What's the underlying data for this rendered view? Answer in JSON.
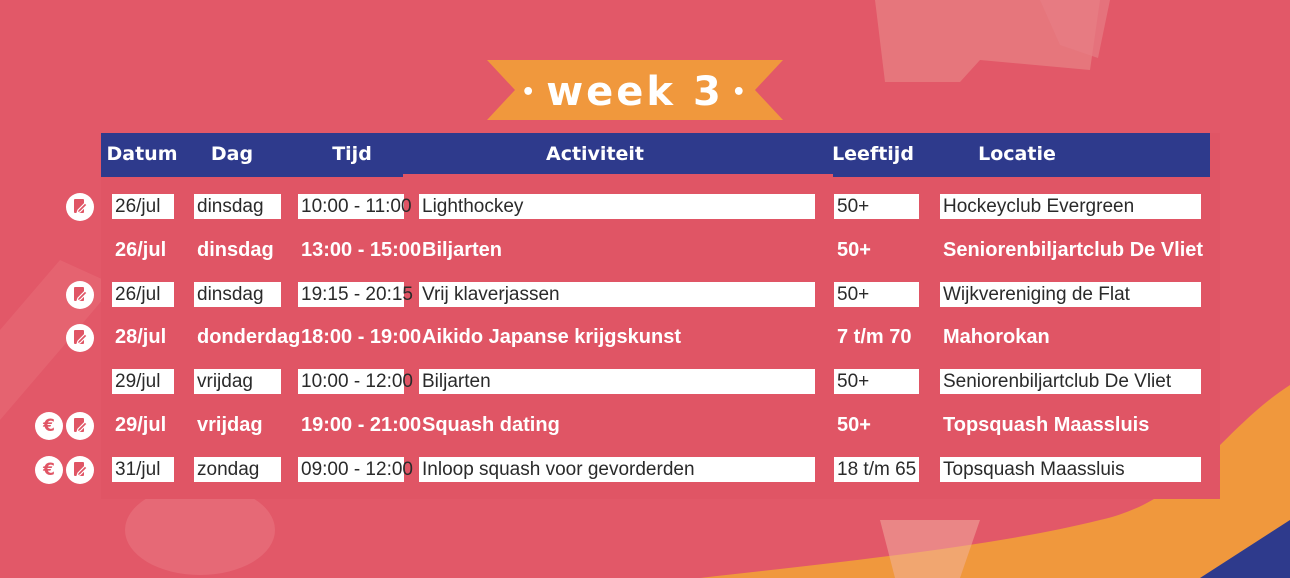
{
  "colors": {
    "background": "#e25868",
    "header": "#2e3a8c",
    "banner": "#f0983d",
    "text": "#2a2a2a"
  },
  "title": {
    "dot_left": "•",
    "label": "week 3",
    "dot_right": "•"
  },
  "headers": [
    "Datum",
    "Dag",
    "Tijd",
    "Activiteit",
    "Leeftijd",
    "Locatie"
  ],
  "rows": [
    {
      "icons": [
        "document-icon"
      ],
      "style": "boxed",
      "datum": "26/jul",
      "dag": "dinsdag",
      "tijd": "10:00 - 11:00",
      "activiteit": "Lighthockey",
      "leeftijd": "50+",
      "locatie": "Hockeyclub Evergreen"
    },
    {
      "icons": [],
      "style": "plain",
      "datum": "26/jul",
      "dag": "dinsdag",
      "tijd": "13:00 - 15:00",
      "activiteit": "Biljarten",
      "leeftijd": "50+",
      "locatie": "Seniorenbiljartclub De Vliet"
    },
    {
      "icons": [
        "document-icon"
      ],
      "style": "boxed",
      "datum": "26/jul",
      "dag": "dinsdag",
      "tijd": "19:15 - 20:15",
      "activiteit": "Vrij klaverjassen",
      "leeftijd": "50+",
      "locatie": "Wijkvereniging de Flat"
    },
    {
      "icons": [
        "document-icon"
      ],
      "style": "plain",
      "datum": "28/jul",
      "dag": "donderdag",
      "tijd": "18:00 - 19:00",
      "activiteit": "Aikido Japanse krijgskunst",
      "leeftijd": "7 t/m 70",
      "locatie": "Mahorokan"
    },
    {
      "icons": [],
      "style": "boxed",
      "datum": "29/jul",
      "dag": "vrijdag",
      "tijd": "10:00 - 12:00",
      "activiteit": "Biljarten",
      "leeftijd": "50+",
      "locatie": "Seniorenbiljartclub De Vliet"
    },
    {
      "icons": [
        "euro-icon",
        "document-icon"
      ],
      "style": "plain",
      "datum": "29/jul",
      "dag": "vrijdag",
      "tijd": "19:00 - 21:00",
      "activiteit": "Squash dating",
      "leeftijd": "50+",
      "locatie": "Topsquash Maassluis"
    },
    {
      "icons": [
        "euro-icon",
        "document-icon"
      ],
      "style": "boxed",
      "datum": "31/jul",
      "dag": "zondag",
      "tijd": "09:00 - 12:00",
      "activiteit": "Inloop squash voor gevorderden",
      "leeftijd": "18 t/m 65",
      "locatie": "Topsquash Maassluis"
    }
  ]
}
